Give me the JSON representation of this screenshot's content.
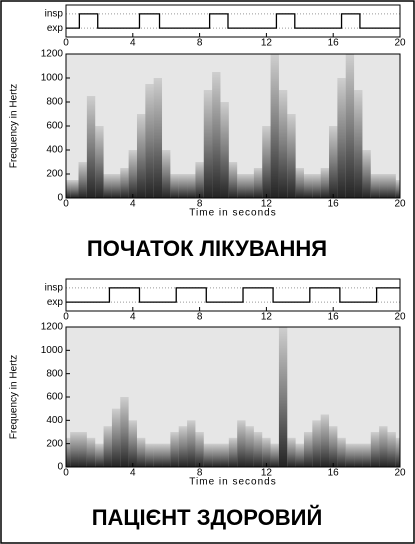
{
  "chart_data": [
    {
      "type": "line",
      "xlim": [
        0,
        20
      ],
      "xticks": [
        0,
        4,
        8,
        12,
        16,
        20
      ],
      "ylim": [
        -0.2,
        1.2
      ],
      "yticks": [
        {
          "value": 0,
          "label": "exp"
        },
        {
          "value": 1,
          "label": "insp"
        }
      ],
      "grid": true,
      "color": "#000000",
      "x": [
        0,
        0.8,
        0.8,
        1.9,
        1.9,
        4.4,
        4.4,
        5.6,
        5.6,
        8.6,
        8.6,
        9.7,
        9.7,
        12.6,
        12.6,
        13.7,
        13.7,
        16.5,
        16.5,
        17.6,
        17.6,
        20
      ],
      "values": [
        0,
        0,
        1,
        1,
        0,
        0,
        1,
        1,
        0,
        0,
        1,
        1,
        0,
        0,
        1,
        1,
        0,
        0,
        1,
        1,
        0,
        0
      ]
    },
    {
      "type": "spectrogram",
      "title": "ПОЧАТОК ЛІКУВАННЯ",
      "xlabel": "Time in seconds",
      "ylabel": "Frequency in Hertz",
      "xlim": [
        0,
        20
      ],
      "xticks": [
        0,
        4,
        8,
        12,
        16,
        20
      ],
      "ylim": [
        0,
        1200
      ],
      "yticks": [
        0,
        200,
        400,
        600,
        800,
        1000,
        1200
      ],
      "color": "#1a1a1a",
      "x": [
        0,
        0.5,
        1,
        1.5,
        2,
        2.5,
        3,
        3.5,
        4,
        4.5,
        5,
        5.5,
        6,
        6.5,
        7,
        7.5,
        8,
        8.5,
        9,
        9.5,
        10,
        10.5,
        11,
        11.5,
        12,
        12.5,
        13,
        13.5,
        14,
        14.5,
        15,
        15.5,
        16,
        16.5,
        17,
        17.5,
        18,
        18.5,
        19,
        19.5,
        20
      ],
      "values": [
        150,
        150,
        300,
        850,
        600,
        200,
        200,
        250,
        400,
        700,
        950,
        1000,
        400,
        200,
        200,
        200,
        300,
        900,
        1050,
        800,
        300,
        200,
        200,
        250,
        600,
        1200,
        900,
        700,
        250,
        200,
        200,
        250,
        600,
        1000,
        1200,
        900,
        400,
        200,
        200,
        200,
        150
      ]
    },
    {
      "type": "line",
      "xlim": [
        0,
        20
      ],
      "xticks": [
        0,
        4,
        8,
        12,
        16,
        20
      ],
      "ylim": [
        -0.2,
        1.2
      ],
      "yticks": [
        {
          "value": 0,
          "label": "exp"
        },
        {
          "value": 1,
          "label": "insp"
        }
      ],
      "grid": true,
      "color": "#000000",
      "x": [
        0,
        2.6,
        2.6,
        4.4,
        4.4,
        6.6,
        6.6,
        8.4,
        8.4,
        10.6,
        10.6,
        12.4,
        12.4,
        14.6,
        14.6,
        16.4,
        16.4,
        18.6,
        18.6,
        20
      ],
      "values": [
        0,
        0,
        1,
        1,
        0,
        0,
        1,
        1,
        0,
        0,
        1,
        1,
        0,
        0,
        1,
        1,
        0,
        0,
        1,
        1
      ]
    },
    {
      "type": "spectrogram",
      "title": "ПАЦІЄНТ ЗДОРОВИЙ",
      "xlabel": "Time in seconds",
      "ylabel": "Frequency in Hertz",
      "xlim": [
        0,
        20
      ],
      "xticks": [
        0,
        4,
        8,
        12,
        16,
        20
      ],
      "ylim": [
        0,
        1200
      ],
      "yticks": [
        0,
        200,
        400,
        600,
        800,
        1000,
        1200
      ],
      "color": "#1a1a1a",
      "x": [
        0,
        0.5,
        1,
        1.5,
        2,
        2.5,
        3,
        3.5,
        4,
        4.5,
        5,
        5.5,
        6,
        6.5,
        7,
        7.5,
        8,
        8.5,
        9,
        9.5,
        10,
        10.5,
        11,
        11.5,
        12,
        12.5,
        13,
        13.5,
        14,
        14.5,
        15,
        15.5,
        16,
        16.5,
        17,
        17.5,
        18,
        18.5,
        19,
        19.5,
        20
      ],
      "values": [
        250,
        300,
        300,
        250,
        200,
        350,
        500,
        600,
        400,
        250,
        200,
        200,
        200,
        300,
        350,
        400,
        300,
        200,
        200,
        200,
        250,
        400,
        350,
        300,
        250,
        200,
        1200,
        250,
        200,
        300,
        400,
        450,
        350,
        250,
        200,
        200,
        200,
        300,
        350,
        300,
        250
      ]
    }
  ]
}
